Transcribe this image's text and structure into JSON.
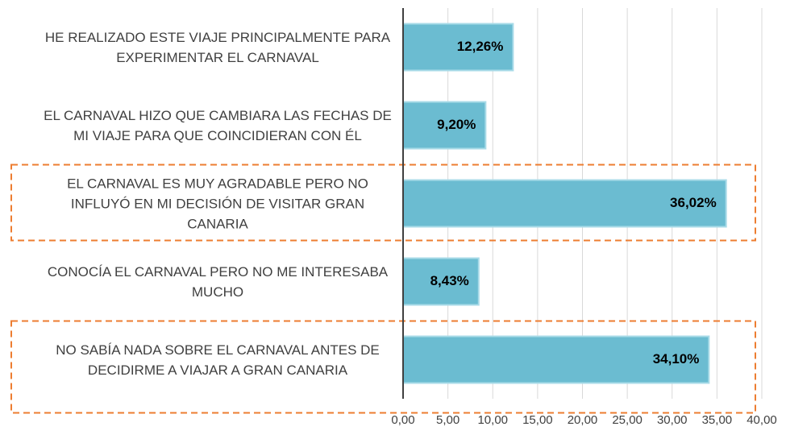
{
  "chart_data": {
    "type": "barh",
    "categories": [
      "HE REALIZADO ESTE VIAJE PRINCIPALMENTE PARA EXPERIMENTAR EL CARNAVAL",
      "EL CARNAVAL HIZO QUE CAMBIARA LAS FECHAS DE MI VIAJE PARA QUE COINCIDIERAN CON ÉL",
      "EL CARNAVAL ES MUY AGRADABLE PERO NO INFLUYÓ EN MI DECISIÓN DE VISITAR GRAN CANARIA",
      "CONOCÍA EL CARNAVAL PERO NO ME INTERESABA MUCHO",
      "NO SABÍA NADA SOBRE EL CARNAVAL ANTES DE DECIDIRME A VIAJAR A GRAN CANARIA"
    ],
    "values": [
      12.26,
      9.2,
      36.02,
      8.43,
      34.1
    ],
    "value_labels": [
      "12,26%",
      "9,20%",
      "36,02%",
      "8,43%",
      "34,10%"
    ],
    "color": "#6bbcd1",
    "xlim": [
      0,
      40
    ],
    "xticks": [
      {
        "value": 0,
        "label": "0,00"
      },
      {
        "value": 5,
        "label": "5,00"
      },
      {
        "value": 10,
        "label": "10,00"
      },
      {
        "value": 15,
        "label": "15,00"
      },
      {
        "value": 20,
        "label": "20,00"
      },
      {
        "value": 25,
        "label": "25,00"
      },
      {
        "value": 30,
        "label": "30,00"
      },
      {
        "value": 35,
        "label": "35,00"
      },
      {
        "value": 40,
        "label": "40,00"
      }
    ],
    "grid": true,
    "highlighted_categories": [
      2,
      4
    ],
    "highlight_color": "#ed7d31"
  }
}
